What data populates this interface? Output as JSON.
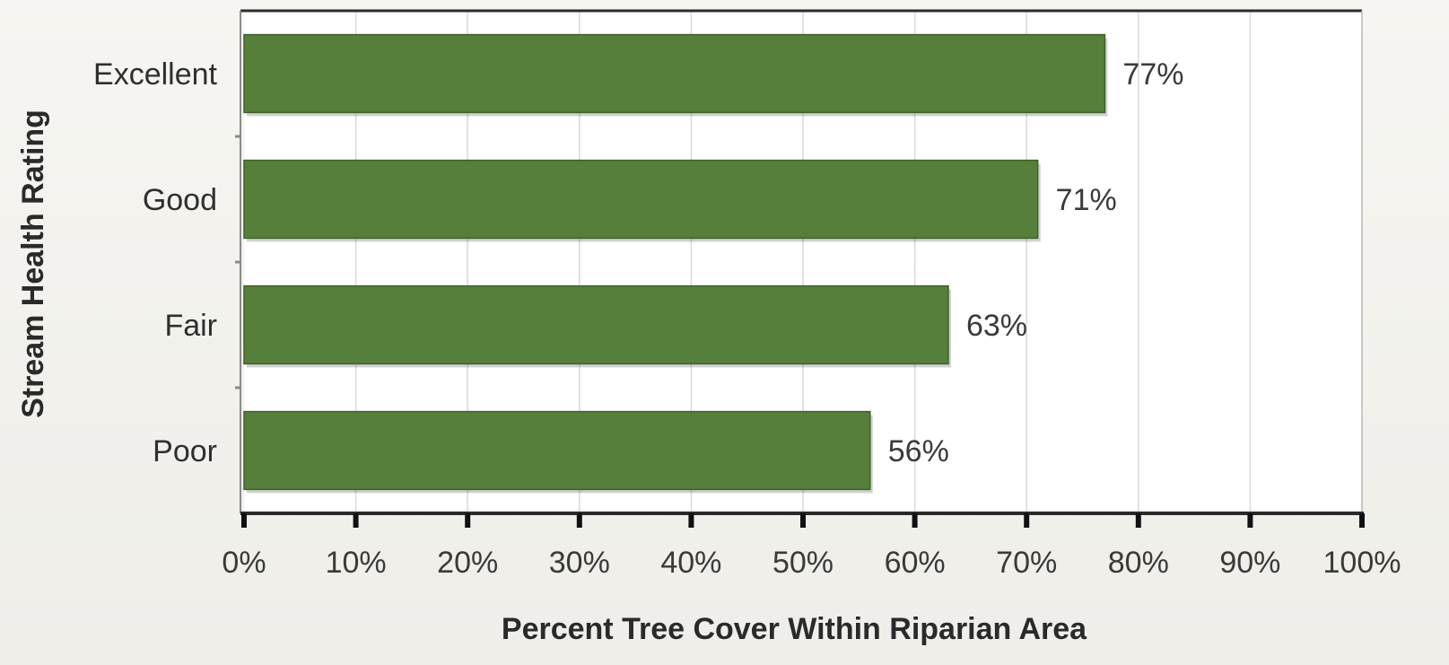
{
  "chart_data": {
    "type": "bar",
    "orientation": "horizontal",
    "categories": [
      "Excellent",
      "Good",
      "Fair",
      "Poor"
    ],
    "values": [
      77,
      71,
      63,
      56
    ],
    "data_labels": [
      "77%",
      "71%",
      "63%",
      "56%"
    ],
    "title": "",
    "xlabel": "Percent Tree Cover Within Riparian Area",
    "ylabel": "Stream Health Rating",
    "xlim": [
      0,
      100
    ],
    "x_ticks": [
      0,
      10,
      20,
      30,
      40,
      50,
      60,
      70,
      80,
      90,
      100
    ],
    "x_tick_labels": [
      "0%",
      "10%",
      "20%",
      "30%",
      "40%",
      "50%",
      "60%",
      "70%",
      "80%",
      "90%",
      "100%"
    ],
    "grid": "vertical",
    "legend": "none",
    "colors": {
      "bar": "#567f3b",
      "bar_edge": "#3f6229",
      "plot_background": "#ffffff",
      "gridline": "#d9d9d9",
      "axis": "#2b2b2b"
    }
  }
}
